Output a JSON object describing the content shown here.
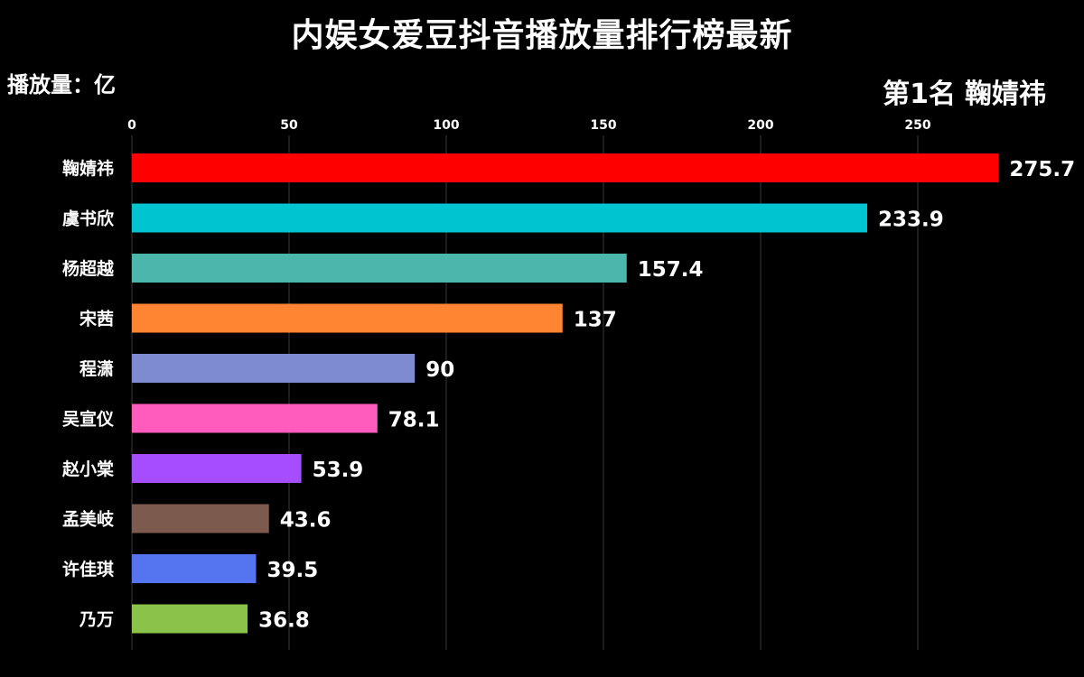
{
  "title": "内娱女爱豆抖音播放量排行榜最新",
  "unit_label": "播放量：亿",
  "rank_label": {
    "prefix": "第1名",
    "name": "鞠婧祎"
  },
  "chart_data": {
    "type": "bar",
    "orientation": "horizontal",
    "title": "内娱女爱豆抖音播放量排行榜最新",
    "ylabel": "播放量：亿",
    "categories": [
      "鞠婧祎",
      "虞书欣",
      "杨超越",
      "宋茜",
      "程潇",
      "吴宣仪",
      "赵小棠",
      "孟美岐",
      "许佳琪",
      "乃万"
    ],
    "values": [
      275.7,
      233.9,
      157.4,
      137,
      90,
      78.1,
      53.9,
      43.6,
      39.5,
      36.8
    ],
    "value_labels": [
      "275.7",
      "233.9",
      "157.4",
      "137",
      "90",
      "78.1",
      "53.9",
      "43.6",
      "39.5",
      "36.8"
    ],
    "colors": [
      "#ff0000",
      "#00c5d1",
      "#4db6ac",
      "#ff8533",
      "#7f8bd0",
      "#ff5cbd",
      "#a64dff",
      "#7d5a4e",
      "#5575f0",
      "#8bc34a"
    ],
    "xticks": [
      0,
      50,
      100,
      150,
      200,
      250
    ],
    "xlim": [
      0,
      280
    ],
    "grid": true,
    "axis_position": "top"
  }
}
